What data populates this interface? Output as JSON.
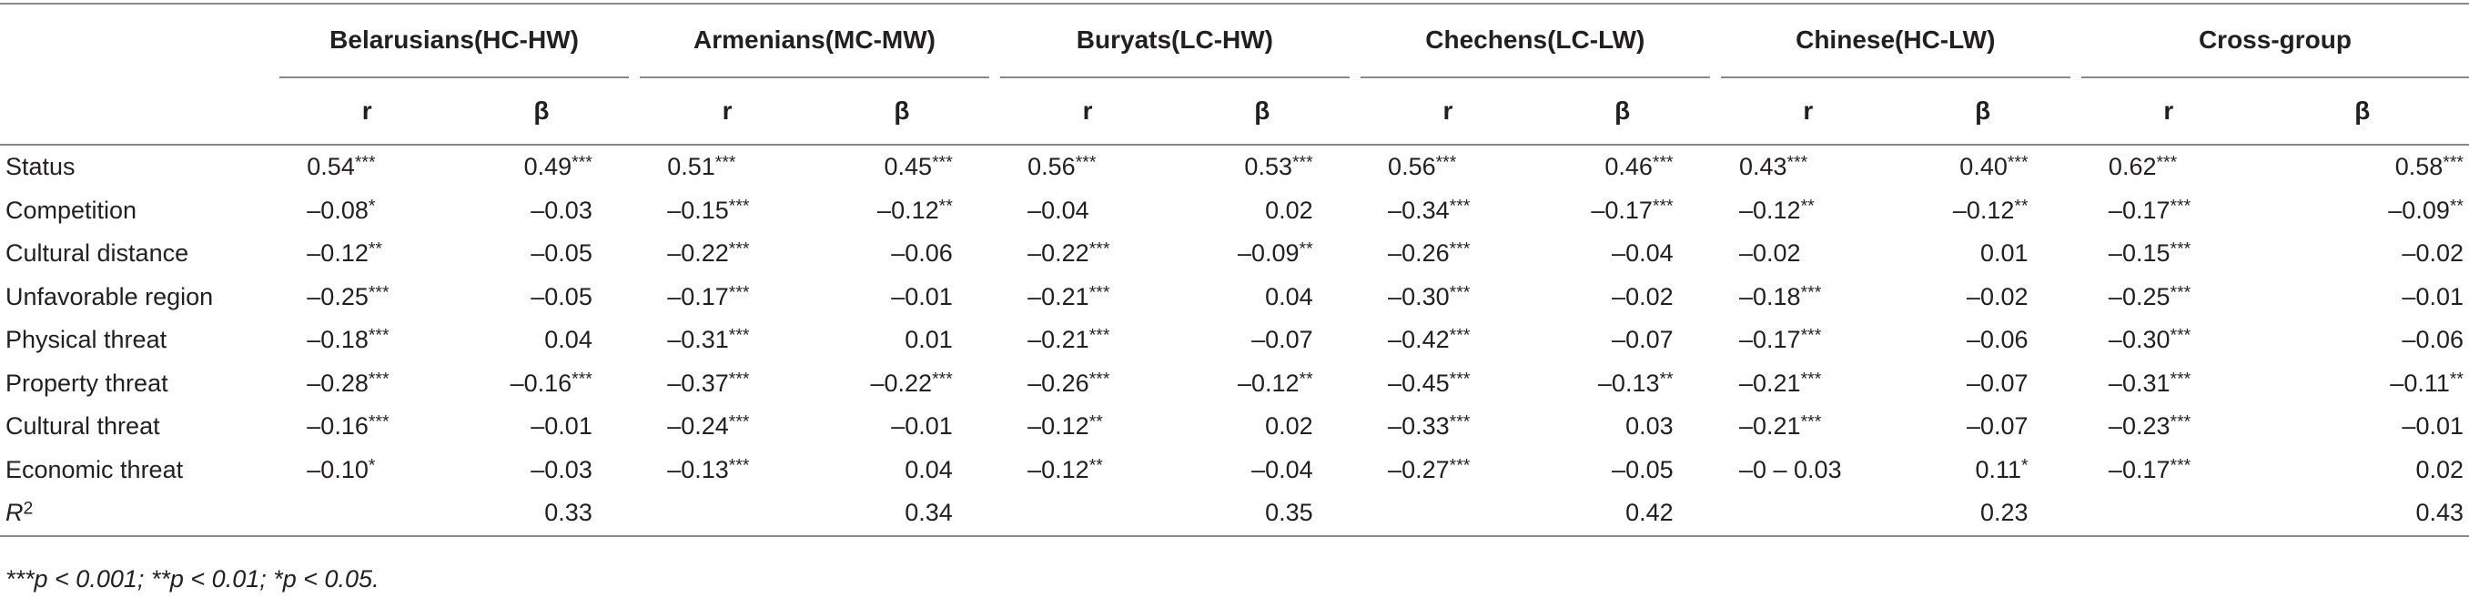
{
  "groups": [
    "Belarusians(HC-HW)",
    "Armenians(MC-MW)",
    "Buryats(LC-HW)",
    "Chechens(LC-LW)",
    "Chinese(HC-LW)",
    "Cross-group"
  ],
  "subheaders": {
    "r": "r",
    "beta": "β"
  },
  "rows": [
    {
      "label": "Status",
      "cells": [
        [
          "0.54",
          "***"
        ],
        [
          "0.49",
          "***"
        ],
        [
          "0.51",
          "***"
        ],
        [
          "0.45",
          "***"
        ],
        [
          "0.56",
          "***"
        ],
        [
          "0.53",
          "***"
        ],
        [
          "0.56",
          "***"
        ],
        [
          "0.46",
          "***"
        ],
        [
          "0.43",
          "***"
        ],
        [
          "0.40",
          "***"
        ],
        [
          "0.62",
          "***"
        ],
        [
          "0.58",
          "***"
        ]
      ]
    },
    {
      "label": "Competition",
      "cells": [
        [
          "–0.08",
          "*"
        ],
        [
          "–0.03",
          ""
        ],
        [
          "–0.15",
          "***"
        ],
        [
          "–0.12",
          "**"
        ],
        [
          "–0.04",
          ""
        ],
        [
          "0.02",
          ""
        ],
        [
          "–0.34",
          "***"
        ],
        [
          "–0.17",
          "***"
        ],
        [
          "–0.12",
          "**"
        ],
        [
          "–0.12",
          "**"
        ],
        [
          "–0.17",
          "***"
        ],
        [
          "–0.09",
          "**"
        ]
      ]
    },
    {
      "label": "Cultural distance",
      "cells": [
        [
          "–0.12",
          "**"
        ],
        [
          "–0.05",
          ""
        ],
        [
          "–0.22",
          "***"
        ],
        [
          "–0.06",
          ""
        ],
        [
          "–0.22",
          "***"
        ],
        [
          "–0.09",
          "**"
        ],
        [
          "–0.26",
          "***"
        ],
        [
          "–0.04",
          ""
        ],
        [
          "–0.02",
          ""
        ],
        [
          "0.01",
          ""
        ],
        [
          "–0.15",
          "***"
        ],
        [
          "–0.02",
          ""
        ]
      ]
    },
    {
      "label": "Unfavorable region",
      "cells": [
        [
          "–0.25",
          "***"
        ],
        [
          "–0.05",
          ""
        ],
        [
          "–0.17",
          "***"
        ],
        [
          "–0.01",
          ""
        ],
        [
          "–0.21",
          "***"
        ],
        [
          "0.04",
          ""
        ],
        [
          "–0.30",
          "***"
        ],
        [
          "–0.02",
          ""
        ],
        [
          "–0.18",
          "***"
        ],
        [
          "–0.02",
          ""
        ],
        [
          "–0.25",
          "***"
        ],
        [
          "–0.01",
          ""
        ]
      ]
    },
    {
      "label": "Physical threat",
      "cells": [
        [
          "–0.18",
          "***"
        ],
        [
          "0.04",
          ""
        ],
        [
          "–0.31",
          "***"
        ],
        [
          "0.01",
          ""
        ],
        [
          "–0.21",
          "***"
        ],
        [
          "–0.07",
          ""
        ],
        [
          "–0.42",
          "***"
        ],
        [
          "–0.07",
          ""
        ],
        [
          "–0.17",
          "***"
        ],
        [
          "–0.06",
          ""
        ],
        [
          "–0.30",
          "***"
        ],
        [
          "–0.06",
          ""
        ]
      ]
    },
    {
      "label": "Property threat",
      "cells": [
        [
          "–0.28",
          "***"
        ],
        [
          "–0.16",
          "***"
        ],
        [
          "–0.37",
          "***"
        ],
        [
          "–0.22",
          "***"
        ],
        [
          "–0.26",
          "***"
        ],
        [
          "–0.12",
          "**"
        ],
        [
          "–0.45",
          "***"
        ],
        [
          "–0.13",
          "**"
        ],
        [
          "–0.21",
          "***"
        ],
        [
          "–0.07",
          ""
        ],
        [
          "–0.31",
          "***"
        ],
        [
          "–0.11",
          "**"
        ]
      ]
    },
    {
      "label": "Cultural threat",
      "cells": [
        [
          "–0.16",
          "***"
        ],
        [
          "–0.01",
          ""
        ],
        [
          "–0.24",
          "***"
        ],
        [
          "–0.01",
          ""
        ],
        [
          "–0.12",
          "**"
        ],
        [
          "0.02",
          ""
        ],
        [
          "–0.33",
          "***"
        ],
        [
          "0.03",
          ""
        ],
        [
          "–0.21",
          "***"
        ],
        [
          "–0.07",
          ""
        ],
        [
          "–0.23",
          "***"
        ],
        [
          "–0.01",
          ""
        ]
      ]
    },
    {
      "label": "Economic threat",
      "cells": [
        [
          "–0.10",
          "*"
        ],
        [
          "–0.03",
          ""
        ],
        [
          "–0.13",
          "***"
        ],
        [
          "0.04",
          ""
        ],
        [
          "–0.12",
          "**"
        ],
        [
          "–0.04",
          ""
        ],
        [
          "–0.27",
          "***"
        ],
        [
          "–0.05",
          ""
        ],
        [
          "–0 – 0.03",
          ""
        ],
        [
          "0.11",
          "*"
        ],
        [
          "–0.17",
          "***"
        ],
        [
          "0.02",
          ""
        ]
      ]
    }
  ],
  "r2": {
    "label_base": "R",
    "label_sup": "2",
    "values": [
      "0.33",
      "0.34",
      "0.35",
      "0.42",
      "0.23",
      "0.43"
    ]
  },
  "footnote": "***p < 0.001; **p < 0.01; *p < 0.05."
}
